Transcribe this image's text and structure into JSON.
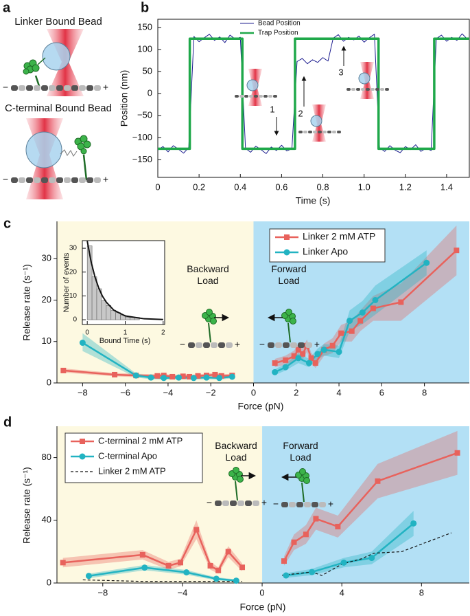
{
  "diagram": {
    "panel_label": "a",
    "titles": [
      "Linker Bound Bead",
      "C-terminal Bound Bead"
    ],
    "minus": "−",
    "plus": "+"
  },
  "chart_data": [
    {
      "panel_label": "b",
      "type": "line",
      "y_label": "Position (nm)",
      "x_label": "Time (s)",
      "frame": true,
      "legend": "upper-center",
      "xlim": [
        0,
        1.51
      ],
      "xticks": [
        0,
        0.2,
        0.4,
        0.6,
        0.8,
        {
          "value": 1,
          "label": "1.0"
        },
        1.2,
        1.4
      ],
      "ylim": [
        -190,
        169
      ],
      "yticks": [
        {
          "value": -150,
          "label": "−150"
        },
        {
          "value": -100,
          "label": "−100"
        },
        {
          "value": -50,
          "label": "−50"
        },
        0,
        50,
        100,
        150
      ],
      "annotations": [
        "1",
        "2",
        "3"
      ],
      "series": [
        {
          "name": "Bead Position",
          "color": "#1c1c8f",
          "line_width": 1,
          "x": [
            0,
            0.025,
            0.05,
            0.075,
            0.1,
            0.125,
            0.15,
            0.175,
            0.2,
            0.225,
            0.25,
            0.275,
            0.3,
            0.325,
            0.35,
            0.375,
            0.4,
            0.425,
            0.45,
            0.475,
            0.5,
            0.525,
            0.55,
            0.575,
            0.6,
            0.625,
            0.65,
            0.675,
            0.7,
            0.725,
            0.75,
            0.775,
            0.8,
            0.825,
            0.85,
            0.875,
            0.9,
            0.925,
            0.95,
            0.975,
            1.0,
            1.025,
            1.05,
            1.075,
            1.1,
            1.125,
            1.15,
            1.175,
            1.2,
            1.225,
            1.25,
            1.275,
            1.3,
            1.325,
            1.35,
            1.375,
            1.4,
            1.425,
            1.45,
            1.475,
            1.5
          ],
          "values": [
            -128,
            -120,
            -132,
            -118,
            -126,
            -135,
            -122,
            130,
            118,
            127,
            135,
            121,
            129,
            116,
            133,
            124,
            128,
            -124,
            -133,
            -119,
            -127,
            -136,
            -121,
            -129,
            -117,
            -130,
            -125,
            73,
            80,
            68,
            77,
            71,
            82,
            74,
            126,
            134,
            119,
            128,
            122,
            131,
            117,
            127,
            135,
            -123,
            -131,
            -118,
            -128,
            -134,
            -120,
            -127,
            -116,
            -131,
            -124,
            -129,
            125,
            133,
            119,
            128,
            121,
            136,
            124
          ]
        },
        {
          "name": "Trap Position",
          "color": "#1fa84a",
          "line_width": 3.5,
          "x": [
            0,
            0.155,
            0.155,
            0.41,
            0.41,
            0.665,
            0.665,
            1.07,
            1.07,
            1.34,
            1.34,
            1.51
          ],
          "values": [
            -125,
            -125,
            125,
            125,
            -125,
            -125,
            125,
            125,
            -125,
            -125,
            125,
            125
          ]
        }
      ]
    },
    {
      "panel_label": "c",
      "type": "line",
      "y_label": "Release rate (s⁻¹)",
      "x_label": "Force (pN)",
      "legend": "upper-right",
      "region_colors": [
        "#fdf9e1",
        "#b3e0f5"
      ],
      "xlim": [
        -9.2,
        10.1
      ],
      "xticks": [
        {
          "value": -8,
          "label": "−8"
        },
        {
          "value": -6,
          "label": "−6"
        },
        {
          "value": -4,
          "label": "−4"
        },
        {
          "value": -2,
          "label": "−2"
        },
        0,
        2,
        4,
        6,
        8
      ],
      "ylim": [
        0,
        39
      ],
      "yticks": [
        0,
        10,
        20,
        30
      ],
      "annotations": [
        "Backward Load",
        "Forward Load"
      ],
      "series": [
        {
          "name": "Linker 2 mM ATP",
          "color": "#e8625c",
          "marker": "square",
          "line_width": 2.5,
          "x": [
            -8.9,
            -6.5,
            -5.5,
            -4.5,
            -4.2,
            -3.8,
            -3.3,
            -3.0,
            -2.6,
            -2.2,
            -1.8,
            -1.5,
            -1.0,
            null,
            1.0,
            1.5,
            1.9,
            2.1,
            2.3,
            2.5,
            2.7,
            2.9,
            3.3,
            3.7,
            4.1,
            4.6,
            5.0,
            5.6,
            6.9,
            9.5
          ],
          "values": [
            3,
            2,
            1.8,
            1.7,
            1.8,
            1.5,
            1.6,
            1.5,
            1.7,
            1.8,
            2,
            1.7,
            1.8,
            null,
            4.8,
            5.5,
            6.5,
            8,
            7,
            9,
            6,
            4.8,
            8,
            9,
            12,
            12.5,
            15,
            18,
            19.5,
            32
          ],
          "band_upper": [
            3.5,
            2.4,
            2.2,
            2.1,
            2.2,
            1.9,
            2,
            1.9,
            2.1,
            2.2,
            2.5,
            2.1,
            2.2,
            null,
            5.8,
            6.6,
            7.8,
            9.6,
            8.4,
            10.5,
            7.3,
            6,
            9.5,
            10.8,
            14,
            15,
            17.5,
            21,
            24,
            38
          ],
          "band_lower": [
            2.5,
            1.6,
            1.4,
            1.3,
            1.4,
            1.1,
            1.2,
            1.1,
            1.3,
            1.4,
            1.5,
            1.3,
            1.4,
            null,
            3.8,
            4.4,
            5.2,
            6.4,
            5.6,
            7.5,
            4.7,
            3.6,
            6.5,
            7.2,
            10,
            10,
            12.5,
            15,
            15,
            26
          ]
        },
        {
          "name": "Linker Apo",
          "color": "#22b3c2",
          "marker": "circle",
          "line_width": 2.5,
          "x": [
            -8,
            -5.5,
            -4.8,
            -4.2,
            -3.5,
            -2.8,
            -2.2,
            -1.6,
            -1.0,
            null,
            1.0,
            1.5,
            2.1,
            2.6,
            3.0,
            3.3,
            4.0,
            4.5,
            5.1,
            5.7,
            8.1
          ],
          "values": [
            9.7,
            1.8,
            1.3,
            1.2,
            1.3,
            1.2,
            1.3,
            1.2,
            1.5,
            null,
            2.6,
            3.8,
            6,
            4.8,
            7,
            8,
            7.5,
            15,
            17,
            20,
            29
          ],
          "band_upper": [
            12,
            2.3,
            1.7,
            1.6,
            1.7,
            1.6,
            1.7,
            1.6,
            1.9,
            null,
            3.3,
            4.6,
            7.2,
            5.8,
            8.3,
            9.4,
            9,
            17.5,
            19.8,
            23.5,
            32
          ],
          "band_lower": [
            7.7,
            1.3,
            0.9,
            0.8,
            0.9,
            0.8,
            0.9,
            0.8,
            1.1,
            null,
            1.9,
            3.0,
            4.8,
            3.8,
            5.7,
            6.6,
            6,
            12.5,
            14.2,
            16.5,
            26
          ]
        }
      ]
    },
    {
      "type": "histogram",
      "y_label": "Number of events",
      "x_label": "Bound Time (s)",
      "frame": true,
      "color": "#c8c8c8",
      "xlim": [
        -0.13,
        2.04
      ],
      "xticks": [
        0,
        1,
        2
      ],
      "ylim": [
        -2,
        33.2
      ],
      "yticks": [
        0,
        10,
        20,
        30
      ],
      "bins": [
        0,
        0.125,
        0.25,
        0.375,
        0.5,
        0.625,
        0.75,
        0.875,
        1,
        1.125,
        1.25,
        1.375,
        1.5,
        1.625,
        1.75,
        1.875,
        2
      ],
      "counts": [
        31,
        18,
        13,
        8,
        6,
        4,
        3,
        2,
        1,
        1,
        1,
        0,
        0,
        0,
        0,
        0
      ],
      "fit": {
        "x": [
          0,
          0.1,
          0.2,
          0.3,
          0.4,
          0.5,
          0.7,
          1,
          1.5,
          2
        ],
        "values": [
          33,
          24.4,
          18.1,
          13.4,
          9.9,
          7.4,
          4,
          1.6,
          0.4,
          0.1
        ]
      }
    },
    {
      "panel_label": "d",
      "type": "line",
      "y_label": "Release rate (s⁻¹)",
      "x_label": "Force (pN)",
      "legend": "upper-left",
      "region_colors": [
        "#fdf9e1",
        "#b3e0f5"
      ],
      "xlim": [
        -10.3,
        10.4
      ],
      "xticks": [
        {
          "value": -8,
          "label": "−8"
        },
        {
          "value": -4,
          "label": "−4"
        },
        0,
        4,
        8
      ],
      "ylim": [
        0,
        100
      ],
      "yticks": [
        0,
        40,
        80
      ],
      "annotations": [
        "Backward Load",
        "Forward Load"
      ],
      "series": [
        {
          "name": "C-terminal 2 mM ATP",
          "color": "#e8625c",
          "marker": "square",
          "line_width": 2.5,
          "x": [
            -10,
            -6,
            -4.7,
            -4.1,
            -3.3,
            -2.6,
            -2.2,
            -1.7,
            -1.0,
            null,
            1.1,
            1.6,
            2.2,
            2.7,
            3.8,
            5.8,
            9.8
          ],
          "values": [
            13,
            18,
            11,
            13,
            34,
            11,
            8,
            20,
            10,
            null,
            14,
            26,
            31,
            41,
            36,
            65,
            83
          ],
          "band_upper": [
            16,
            21,
            13.5,
            15.5,
            40,
            13.5,
            10,
            23.5,
            12.5,
            null,
            17,
            31,
            37,
            48,
            43,
            76,
            97
          ],
          "band_lower": [
            10,
            15,
            8.5,
            10.5,
            28,
            8.5,
            6,
            16.5,
            7.5,
            null,
            11,
            21,
            25,
            34,
            29,
            54,
            69
          ]
        },
        {
          "name": "C-terminal Apo",
          "color": "#22b3c2",
          "marker": "circle",
          "line_width": 2.5,
          "x": [
            -8.7,
            -5.9,
            -3.8,
            -2.3,
            -1.3,
            null,
            1.2,
            2.5,
            4.1,
            5.5,
            7.6
          ],
          "values": [
            4.5,
            9.8,
            6.8,
            2.7,
            1.5,
            null,
            4.8,
            7,
            13,
            16,
            38
          ],
          "band_upper": [
            6,
            11.5,
            8.3,
            3.7,
            2.3,
            null,
            6.3,
            9,
            16,
            20,
            46
          ],
          "band_lower": [
            3,
            8.1,
            5.3,
            1.7,
            0.7,
            null,
            3.3,
            5,
            10,
            12,
            30
          ]
        },
        {
          "name": "Linker 2 mM ATP",
          "color": "#111111",
          "dash": true,
          "line_width": 1.2,
          "x": [
            -9,
            -6,
            -4,
            -2,
            -1,
            null,
            1,
            2.5,
            3,
            4,
            5,
            5.6,
            7,
            9.5
          ],
          "values": [
            2,
            1,
            1,
            1,
            1,
            null,
            5,
            7,
            4.8,
            12,
            15.5,
            19,
            20,
            32
          ]
        }
      ]
    }
  ]
}
